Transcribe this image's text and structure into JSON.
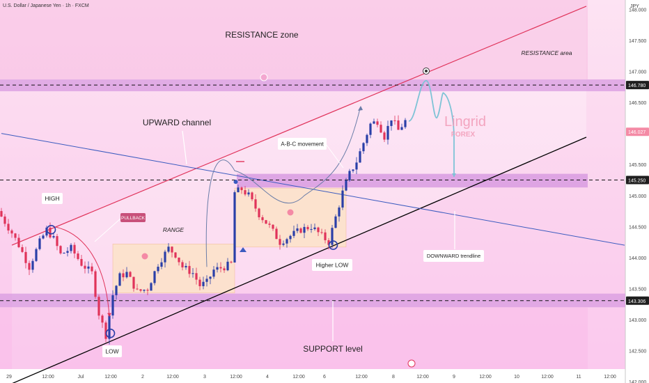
{
  "header": {
    "symbol_title": "U.S. Dollar / Japanese Yen · 1h · FXCM"
  },
  "axis": {
    "currency": "JPY"
  },
  "watermark": {
    "brand": "Lingrid",
    "sub": "FOREX"
  },
  "annotations": {
    "resistance_zone": "RESISTANCE zone",
    "resistance_area": "RESISTANCE area",
    "upward_channel": "UPWARD channel",
    "abc_movement": "A-B-C movement",
    "high": "HIGH",
    "pullback": "PULLBACK",
    "range": "RANGE",
    "low": "LOW",
    "higher_low": "Higher LOW",
    "downward_trendline": "DOWNWARD trendline",
    "support_level": "SUPPORT level"
  },
  "colors": {
    "bull": "#2a3fa8",
    "bear": "#e0335a",
    "resistance_band": "#d89be0",
    "projection": "#7ec3d6",
    "channel_upper": "#e0335a",
    "channel_lower": "#000000",
    "downtrend": "#3b5bbf"
  },
  "chart_data": {
    "type": "candlestick",
    "ylim": [
      141.98,
      148.15
    ],
    "y_ticks": [
      148.0,
      147.5,
      147.0,
      146.5,
      146.0,
      145.5,
      145.0,
      144.5,
      144.0,
      143.5,
      143.0,
      142.5,
      142.0
    ],
    "y_tick_labels": [
      "148.000",
      "147.500",
      "147.000",
      "146.500",
      "146.000",
      "145.500",
      "145.000",
      "144.500",
      "144.000",
      "143.500",
      "143.000",
      "142.500",
      "142.000"
    ],
    "x_tick_labels": [
      "29",
      "12:00",
      "Jul",
      "12:00",
      "2",
      "12:00",
      "3",
      "12:00",
      "4",
      "12:00",
      "6",
      "12:00",
      "8",
      "12:00",
      "9",
      "12:00",
      "10",
      "12:00",
      "11",
      "12:00"
    ],
    "levels": [
      {
        "label": "146.780",
        "value": 146.78
      },
      {
        "label": "146.027",
        "value": 146.027,
        "current": true
      },
      {
        "label": "145.250",
        "value": 145.25
      },
      {
        "label": "143.306",
        "value": 143.306
      }
    ],
    "anchors": [
      {
        "bar": 0,
        "price": 144.75
      },
      {
        "bar": 4,
        "price": 144.4
      },
      {
        "bar": 6,
        "price": 144.2
      },
      {
        "bar": 9,
        "price": 143.85
      },
      {
        "bar": 12,
        "price": 144.25
      },
      {
        "bar": 14,
        "price": 144.45
      },
      {
        "bar": 16,
        "price": 144.3
      },
      {
        "bar": 18,
        "price": 144.05
      },
      {
        "bar": 21,
        "price": 144.15
      },
      {
        "bar": 24,
        "price": 143.9
      },
      {
        "bar": 27,
        "price": 143.75
      },
      {
        "bar": 29,
        "price": 143.1
      },
      {
        "bar": 31,
        "price": 142.75
      },
      {
        "bar": 33,
        "price": 143.4
      },
      {
        "bar": 35,
        "price": 143.7
      },
      {
        "bar": 37,
        "price": 143.75
      },
      {
        "bar": 40,
        "price": 143.45
      },
      {
        "bar": 43,
        "price": 143.5
      },
      {
        "bar": 46,
        "price": 143.9
      },
      {
        "bar": 49,
        "price": 144.15
      },
      {
        "bar": 51,
        "price": 144.05
      },
      {
        "bar": 53,
        "price": 143.85
      },
      {
        "bar": 56,
        "price": 143.75
      },
      {
        "bar": 58,
        "price": 143.55
      },
      {
        "bar": 60,
        "price": 143.6
      },
      {
        "bar": 62,
        "price": 143.8
      },
      {
        "bar": 65,
        "price": 143.85
      },
      {
        "bar": 67,
        "price": 143.9
      },
      {
        "bar": 68,
        "price": 145.05
      },
      {
        "bar": 70,
        "price": 145.1
      },
      {
        "bar": 72,
        "price": 145.0
      },
      {
        "bar": 75,
        "price": 144.7
      },
      {
        "bar": 78,
        "price": 144.5
      },
      {
        "bar": 81,
        "price": 144.25
      },
      {
        "bar": 84,
        "price": 144.35
      },
      {
        "bar": 87,
        "price": 144.45
      },
      {
        "bar": 90,
        "price": 144.5
      },
      {
        "bar": 93,
        "price": 144.35
      },
      {
        "bar": 95,
        "price": 144.25
      },
      {
        "bar": 97,
        "price": 144.65
      },
      {
        "bar": 99,
        "price": 145.05
      },
      {
        "bar": 101,
        "price": 145.35
      },
      {
        "bar": 103,
        "price": 145.55
      },
      {
        "bar": 105,
        "price": 145.85
      },
      {
        "bar": 107,
        "price": 146.15
      },
      {
        "bar": 109,
        "price": 146.2
      },
      {
        "bar": 111,
        "price": 145.95
      },
      {
        "bar": 113,
        "price": 146.25
      },
      {
        "bar": 115,
        "price": 146.05
      },
      {
        "bar": 117,
        "price": 146.2
      }
    ],
    "projection": [
      {
        "bar": 117,
        "price": 146.2
      },
      {
        "bar": 122,
        "price": 146.85
      },
      {
        "bar": 125,
        "price": 146.25
      },
      {
        "bar": 127,
        "price": 146.65
      },
      {
        "bar": 130,
        "price": 145.9
      },
      {
        "bar": 130,
        "price": 145.3
      }
    ],
    "trendlines": [
      {
        "name": "upper-channel",
        "from": {
          "bar": 3,
          "price": 144.2
        },
        "to": {
          "bar": 168,
          "price": 148.05
        }
      },
      {
        "name": "lower-channel",
        "from": {
          "bar": 3,
          "price": 141.97
        },
        "to": {
          "bar": 168,
          "price": 145.94
        }
      },
      {
        "name": "downward-trendline",
        "from": {
          "bar": 0,
          "price": 146.0
        },
        "to": {
          "bar": 179,
          "price": 144.2
        }
      }
    ],
    "range_box": {
      "from_bar": 32,
      "to_bar": 67,
      "top": 144.22,
      "bottom": 143.43
    },
    "consolidation_box": {
      "from_bar": 67,
      "to_bar": 99,
      "top": 145.12,
      "bottom": 144.17
    },
    "resistance_band": {
      "top": 146.87,
      "bottom": 146.68
    },
    "middle_band": {
      "top": 145.35,
      "bottom": 145.13
    },
    "support_band": {
      "top": 143.42,
      "bottom": 143.2
    }
  }
}
